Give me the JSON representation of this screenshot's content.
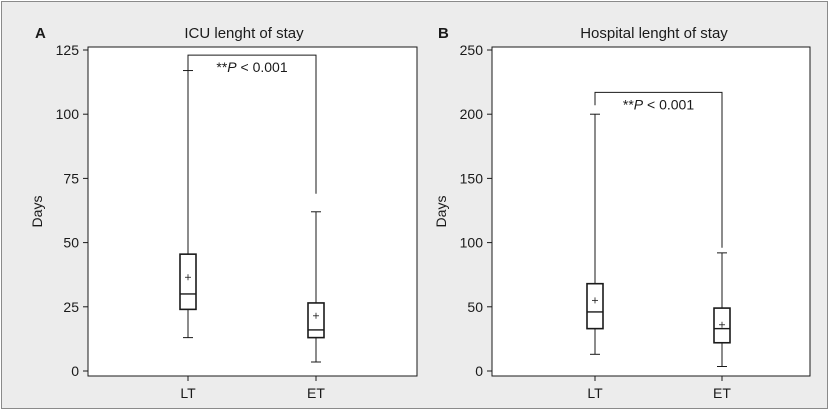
{
  "chart_data": [
    {
      "type": "box",
      "panel": "A",
      "title": "ICU lenght of stay",
      "ylabel": "Days",
      "xlabel": "",
      "ylim": [
        0,
        125
      ],
      "yticks": [
        0,
        25,
        50,
        75,
        100,
        125
      ],
      "categories": [
        "LT",
        "ET"
      ],
      "boxes": [
        {
          "label": "LT",
          "min": 13,
          "q1": 24,
          "median": 30,
          "q3": 45.5,
          "max": 117,
          "mean": 36.5
        },
        {
          "label": "ET",
          "min": 3.5,
          "q1": 13,
          "median": 16,
          "q3": 26.5,
          "max": 62,
          "mean": 21.5
        }
      ],
      "annotation": {
        "pre": "**",
        "italic": "P",
        "post": " < 0.001",
        "bracket_top": 123,
        "left_drop": 117,
        "right_drop": 69
      },
      "grid": false,
      "legend": "none"
    },
    {
      "type": "box",
      "panel": "B",
      "title": "Hospital lenght of stay",
      "ylabel": "Days",
      "xlabel": "",
      "ylim": [
        0,
        250
      ],
      "yticks": [
        0,
        50,
        100,
        150,
        200,
        250
      ],
      "categories": [
        "LT",
        "ET"
      ],
      "boxes": [
        {
          "label": "LT",
          "min": 13,
          "q1": 33,
          "median": 46,
          "q3": 68,
          "max": 200,
          "mean": 55
        },
        {
          "label": "ET",
          "min": 3.5,
          "q1": 22,
          "median": 33,
          "q3": 49,
          "max": 92,
          "mean": 36
        }
      ],
      "annotation": {
        "pre": "**",
        "italic": "P",
        "post": " < 0.001",
        "bracket_top": 217,
        "left_drop": 207,
        "right_drop": 96
      },
      "grid": false,
      "legend": "none"
    }
  ]
}
